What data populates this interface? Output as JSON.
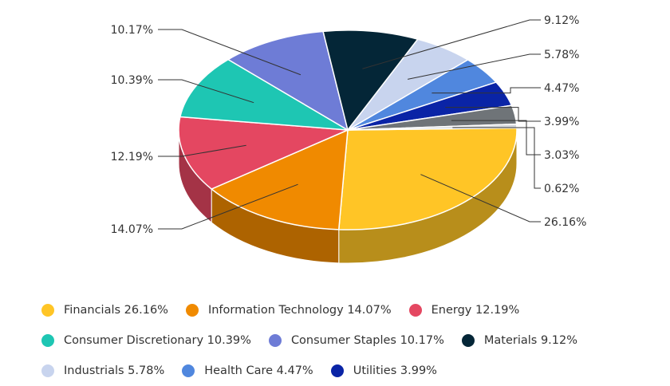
{
  "chart_data": {
    "type": "pie",
    "title": "",
    "slices": [
      {
        "label": "Financials",
        "value": 26.16,
        "value_label": "26.16%",
        "color": "#FFC526"
      },
      {
        "label": "Information Technology",
        "value": 14.07,
        "value_label": "14.07%",
        "color": "#F08A00"
      },
      {
        "label": "Energy",
        "value": 12.19,
        "value_label": "12.19%",
        "color": "#E44761"
      },
      {
        "label": "Consumer Discretionary",
        "value": 10.39,
        "value_label": "10.39%",
        "color": "#1EC6B3"
      },
      {
        "label": "Consumer Staples",
        "value": 10.17,
        "value_label": "10.17%",
        "color": "#6E7CD6"
      },
      {
        "label": "Materials",
        "value": 9.12,
        "value_label": "9.12%",
        "color": "#042637"
      },
      {
        "label": "Industrials",
        "value": 5.78,
        "value_label": "5.78%",
        "color": "#C8D4EE"
      },
      {
        "label": "Health Care",
        "value": 4.47,
        "value_label": "4.47%",
        "color": "#5087DE"
      },
      {
        "label": "Utilities",
        "value": 3.99,
        "value_label": "3.99%",
        "color": "#0A24A6"
      },
      {
        "label": "",
        "value": 3.03,
        "value_label": "3.03%",
        "color": "#6F7478"
      },
      {
        "label": "",
        "value": 0.62,
        "value_label": "0.62%",
        "color": "#D5D8DC"
      }
    ],
    "legend": [
      {
        "text": "Financials 26.16%",
        "color": "#FFC526"
      },
      {
        "text": "Information Technology 14.07%",
        "color": "#F08A00"
      },
      {
        "text": "Energy 12.19%",
        "color": "#E44761"
      },
      {
        "text": "Consumer Discretionary 10.39%",
        "color": "#1EC6B3"
      },
      {
        "text": "Consumer Staples 10.17%",
        "color": "#6E7CD6"
      },
      {
        "text": "Materials 9.12%",
        "color": "#042637"
      },
      {
        "text": "Industrials 5.78%",
        "color": "#C8D4EE"
      },
      {
        "text": "Health Care 4.47%",
        "color": "#5087DE"
      },
      {
        "text": "Utilities 3.99%",
        "color": "#0A24A6"
      }
    ],
    "legend_placement": "bottom"
  }
}
